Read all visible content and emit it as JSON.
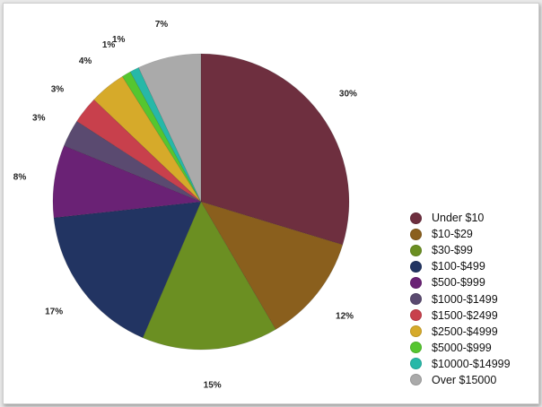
{
  "chart_data": {
    "type": "pie",
    "title": "",
    "start": "12 o'clock, clockwise",
    "slices": [
      {
        "label": "Under $10",
        "value": 30,
        "pct_label": "30%",
        "color": "#6e2f3f"
      },
      {
        "label": "$10-$29",
        "value": 12,
        "pct_label": "12%",
        "color": "#8a5f1d"
      },
      {
        "label": "$30-$99",
        "value": 15,
        "pct_label": "15%",
        "color": "#6b8f22"
      },
      {
        "label": "$100-$499",
        "value": 17,
        "pct_label": "17%",
        "color": "#223462"
      },
      {
        "label": "$500-$999",
        "value": 8,
        "pct_label": "8%",
        "color": "#6a2275"
      },
      {
        "label": "$1000-$1499",
        "value": 3,
        "pct_label": "3%",
        "color": "#5a4a70"
      },
      {
        "label": "$1500-$2499",
        "value": 3,
        "pct_label": "3%",
        "color": "#c8404c"
      },
      {
        "label": "$2500-$4999",
        "value": 4,
        "pct_label": "4%",
        "color": "#d6aa2a"
      },
      {
        "label": "$5000-$999",
        "value": 1,
        "pct_label": "1%",
        "color": "#55c62f"
      },
      {
        "label": "$10000-$14999",
        "value": 1,
        "pct_label": "1%",
        "color": "#27b8a8"
      },
      {
        "label": "Over $15000",
        "value": 7,
        "pct_label": "7%",
        "color": "#aaaaaa"
      }
    ],
    "legend_position": "bottom-right"
  }
}
